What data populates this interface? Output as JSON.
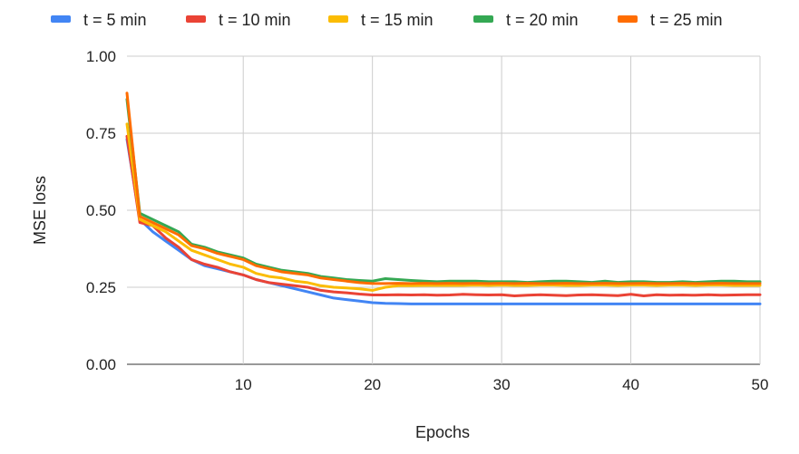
{
  "chart_data": {
    "type": "line",
    "title": "",
    "xlabel": "Epochs",
    "ylabel": "MSE loss",
    "xlim": [
      1,
      50
    ],
    "ylim": [
      0,
      1
    ],
    "x_ticks": [
      "10",
      "20",
      "30",
      "40",
      "50"
    ],
    "y_ticks": [
      "0.00",
      "0.25",
      "0.50",
      "0.75",
      "1.00"
    ],
    "grid": true,
    "legend_position": "top",
    "x": [
      1,
      2,
      3,
      4,
      5,
      6,
      7,
      8,
      9,
      10,
      11,
      12,
      13,
      14,
      15,
      16,
      17,
      18,
      19,
      20,
      21,
      22,
      23,
      24,
      25,
      26,
      27,
      28,
      29,
      30,
      31,
      32,
      33,
      34,
      35,
      36,
      37,
      38,
      39,
      40,
      41,
      42,
      43,
      44,
      45,
      46,
      47,
      48,
      49,
      50
    ],
    "series": [
      {
        "name": "t = 5 min",
        "color": "#4285F4",
        "values": [
          0.73,
          0.47,
          0.43,
          0.4,
          0.37,
          0.34,
          0.32,
          0.31,
          0.3,
          0.29,
          0.275,
          0.265,
          0.255,
          0.245,
          0.235,
          0.225,
          0.215,
          0.21,
          0.205,
          0.2,
          0.198,
          0.197,
          0.196,
          0.196,
          0.196,
          0.196,
          0.196,
          0.196,
          0.196,
          0.196,
          0.196,
          0.196,
          0.196,
          0.196,
          0.196,
          0.196,
          0.196,
          0.196,
          0.196,
          0.196,
          0.196,
          0.196,
          0.196,
          0.196,
          0.196,
          0.196,
          0.196,
          0.196,
          0.196,
          0.196
        ]
      },
      {
        "name": "t = 10 min",
        "color": "#EA4335",
        "values": [
          0.74,
          0.46,
          0.45,
          0.41,
          0.38,
          0.34,
          0.325,
          0.315,
          0.3,
          0.29,
          0.275,
          0.265,
          0.26,
          0.255,
          0.25,
          0.24,
          0.235,
          0.232,
          0.228,
          0.225,
          0.225,
          0.226,
          0.225,
          0.226,
          0.224,
          0.225,
          0.227,
          0.226,
          0.225,
          0.226,
          0.222,
          0.224,
          0.226,
          0.224,
          0.223,
          0.225,
          0.226,
          0.224,
          0.223,
          0.227,
          0.222,
          0.226,
          0.224,
          0.225,
          0.224,
          0.226,
          0.224,
          0.225,
          0.226,
          0.226
        ]
      },
      {
        "name": "t = 15 min",
        "color": "#FBBC04",
        "values": [
          0.78,
          0.47,
          0.45,
          0.43,
          0.4,
          0.37,
          0.355,
          0.34,
          0.325,
          0.315,
          0.295,
          0.285,
          0.28,
          0.27,
          0.265,
          0.255,
          0.25,
          0.248,
          0.245,
          0.24,
          0.25,
          0.255,
          0.255,
          0.256,
          0.256,
          0.256,
          0.256,
          0.257,
          0.256,
          0.257,
          0.256,
          0.256,
          0.257,
          0.257,
          0.256,
          0.256,
          0.257,
          0.257,
          0.256,
          0.257,
          0.257,
          0.256,
          0.257,
          0.257,
          0.256,
          0.257,
          0.257,
          0.256,
          0.256,
          0.256
        ]
      },
      {
        "name": "t = 20 min",
        "color": "#34A853",
        "values": [
          0.86,
          0.49,
          0.47,
          0.45,
          0.43,
          0.39,
          0.38,
          0.365,
          0.355,
          0.345,
          0.325,
          0.315,
          0.305,
          0.3,
          0.295,
          0.285,
          0.28,
          0.275,
          0.272,
          0.27,
          0.278,
          0.275,
          0.272,
          0.27,
          0.268,
          0.27,
          0.27,
          0.27,
          0.268,
          0.268,
          0.268,
          0.266,
          0.268,
          0.27,
          0.27,
          0.268,
          0.266,
          0.27,
          0.266,
          0.268,
          0.268,
          0.266,
          0.266,
          0.268,
          0.266,
          0.268,
          0.27,
          0.27,
          0.268,
          0.268
        ]
      },
      {
        "name": "t = 25 min",
        "color": "#FF6D01",
        "values": [
          0.88,
          0.48,
          0.46,
          0.44,
          0.42,
          0.385,
          0.375,
          0.36,
          0.35,
          0.34,
          0.32,
          0.31,
          0.3,
          0.295,
          0.29,
          0.28,
          0.275,
          0.27,
          0.265,
          0.262,
          0.262,
          0.263,
          0.262,
          0.263,
          0.262,
          0.263,
          0.262,
          0.263,
          0.262,
          0.263,
          0.262,
          0.263,
          0.262,
          0.262,
          0.263,
          0.262,
          0.262,
          0.263,
          0.262,
          0.262,
          0.263,
          0.262,
          0.262,
          0.263,
          0.262,
          0.262,
          0.263,
          0.262,
          0.262,
          0.262
        ]
      }
    ]
  }
}
